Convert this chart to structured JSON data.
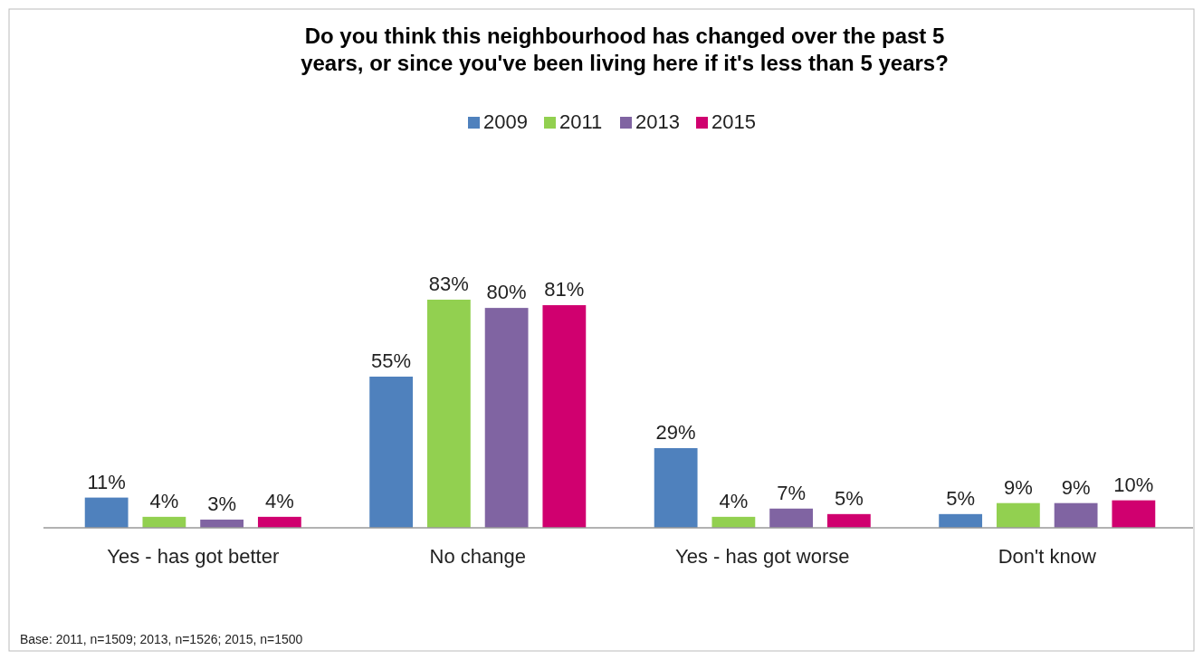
{
  "chart_data": {
    "type": "bar",
    "title": "Do you think this neighbourhood has changed over the past 5\nyears, or since you've been living here if it's less than 5 years?",
    "categories": [
      "Yes - has got better",
      "No change",
      "Yes - has got worse",
      "Don't know"
    ],
    "series": [
      {
        "name": "2009",
        "color": "#4f81bd",
        "values": [
          11,
          55,
          29,
          5
        ],
        "value_labels": [
          "11%",
          "55%",
          "29%",
          "5%"
        ]
      },
      {
        "name": "2011",
        "color": "#92d050",
        "values": [
          4,
          83,
          4,
          9
        ],
        "value_labels": [
          "4%",
          "83%",
          "4%",
          "9%"
        ]
      },
      {
        "name": "2013",
        "color": "#8064a2",
        "values": [
          3,
          80,
          7,
          9
        ],
        "value_labels": [
          "3%",
          "80%",
          "7%",
          "9%"
        ]
      },
      {
        "name": "2015",
        "color": "#d0006f",
        "values": [
          4,
          81,
          5,
          10
        ],
        "value_labels": [
          "4%",
          "81%",
          "5%",
          "10%"
        ]
      }
    ],
    "legend": "top",
    "annotations": [
      "Base: 2011, n=1509; 2013, n=1526; 2015, n=1500"
    ]
  }
}
